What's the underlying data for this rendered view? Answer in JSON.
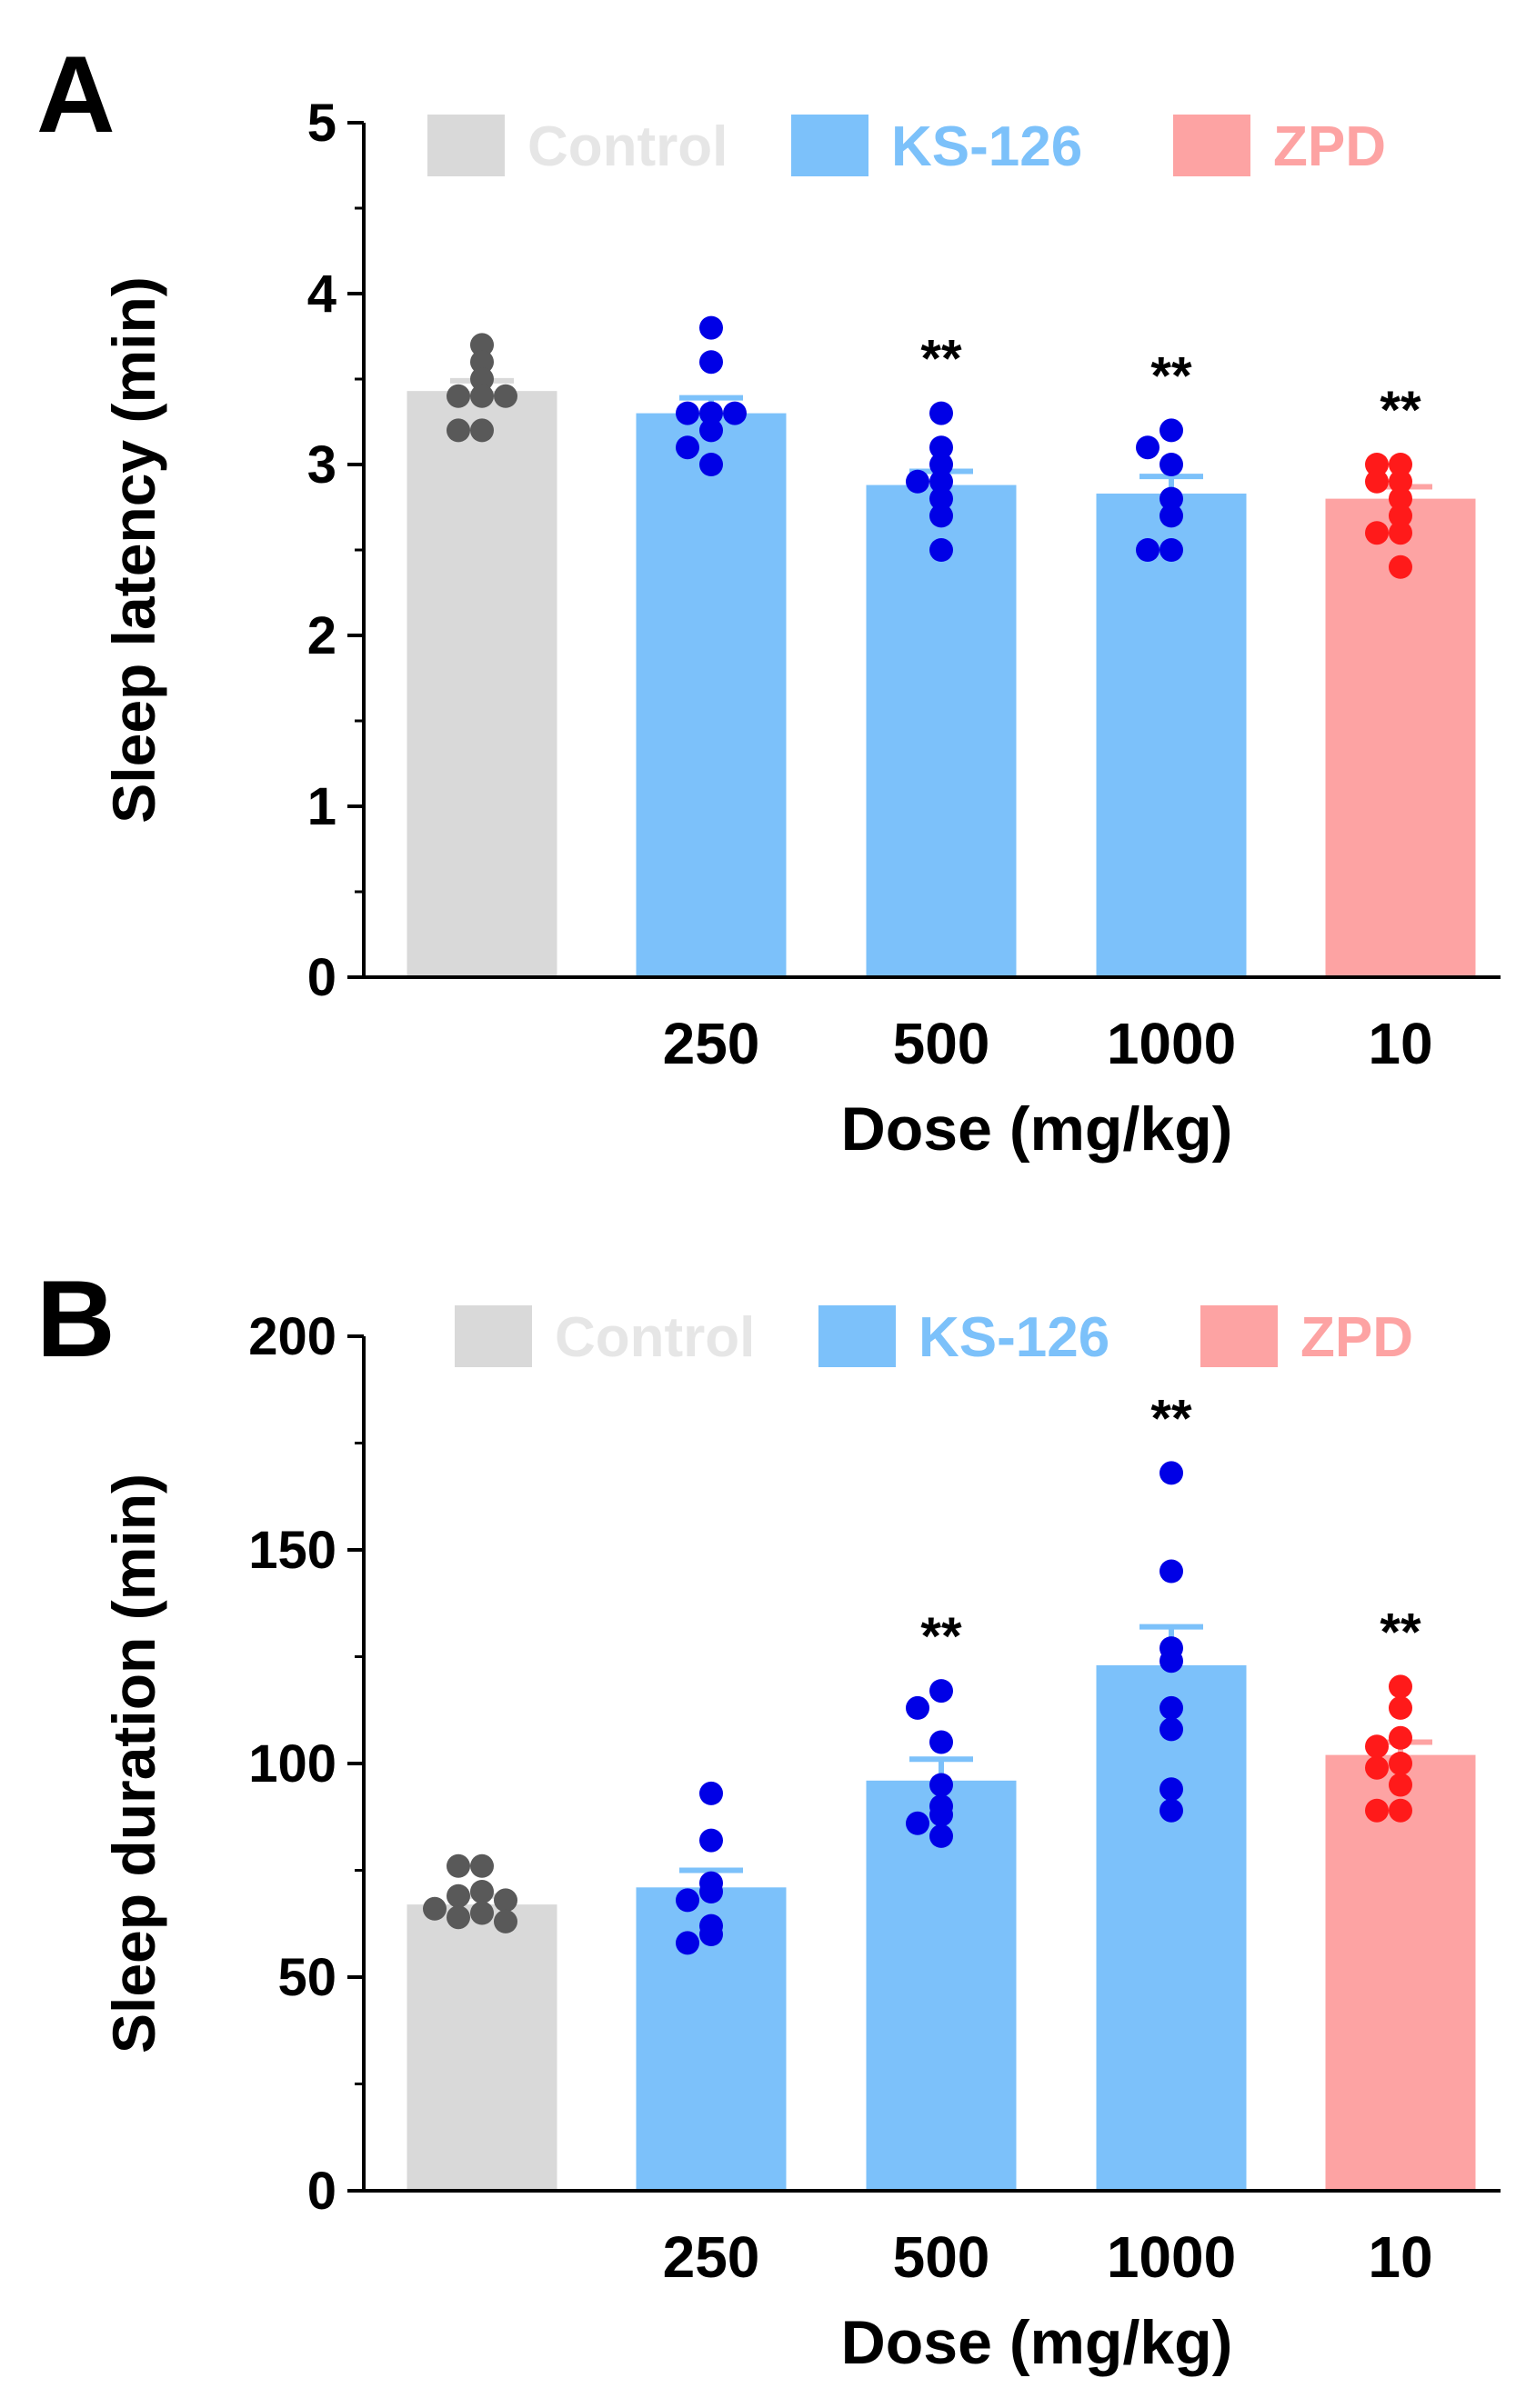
{
  "colors": {
    "control_bar": "#d9d9d9",
    "control_dot": "#595959",
    "ks_bar": "#7cc1fa",
    "ks_dot": "#0000e6",
    "zpd_bar": "#fda3a3",
    "zpd_dot": "#ff1a1a",
    "axis": "#000000",
    "text": "#000000"
  },
  "chart_data": [
    {
      "panel_label": "A",
      "type": "bar",
      "ylabel": "Sleep latency (min)",
      "xlabel": "Dose (mg/kg)",
      "ylim": [
        0,
        5
      ],
      "yticks": [
        0,
        1,
        2,
        3,
        4,
        5
      ],
      "categories": [
        "",
        "250",
        "500",
        "1000",
        "10"
      ],
      "legend": [
        "Control",
        "KS-126",
        "ZPD"
      ],
      "legend_placement": "top",
      "bars": [
        {
          "group": "Control",
          "value": 3.43,
          "sem": 0.06,
          "sig": "",
          "points": [
            3.7,
            3.6,
            3.5,
            3.4,
            3.4,
            3.4,
            3.2,
            3.2
          ]
        },
        {
          "group": "KS-126",
          "value": 3.3,
          "sem": 0.09,
          "sig": "",
          "points": [
            3.8,
            3.6,
            3.3,
            3.3,
            3.3,
            3.2,
            3.1,
            3.0
          ]
        },
        {
          "group": "KS-126",
          "value": 2.88,
          "sem": 0.08,
          "sig": "**",
          "points": [
            3.3,
            3.1,
            3.0,
            2.9,
            2.9,
            2.8,
            2.7,
            2.5
          ]
        },
        {
          "group": "KS-126",
          "value": 2.83,
          "sem": 0.1,
          "sig": "**",
          "points": [
            3.2,
            3.1,
            3.0,
            2.8,
            2.7,
            2.5,
            2.5
          ]
        },
        {
          "group": "ZPD",
          "value": 2.8,
          "sem": 0.07,
          "sig": "**",
          "points": [
            3.0,
            3.0,
            2.9,
            2.9,
            2.8,
            2.7,
            2.6,
            2.6,
            2.4
          ]
        }
      ]
    },
    {
      "panel_label": "B",
      "type": "bar",
      "ylabel": "Sleep duration (min)",
      "xlabel": "Dose (mg/kg)",
      "ylim": [
        0,
        200
      ],
      "yticks": [
        0,
        50,
        100,
        150,
        200
      ],
      "categories": [
        "",
        "250",
        "500",
        "1000",
        "10"
      ],
      "legend": [
        "Control",
        "KS-126",
        "ZPD"
      ],
      "legend_placement": "top",
      "bars": [
        {
          "group": "Control",
          "value": 67,
          "sem": 2,
          "sig": "",
          "points": [
            76,
            76,
            70,
            69,
            68,
            66,
            65,
            64,
            63
          ]
        },
        {
          "group": "KS-126",
          "value": 71,
          "sem": 4,
          "sig": "",
          "points": [
            93,
            82,
            72,
            70,
            68,
            62,
            60,
            58
          ]
        },
        {
          "group": "KS-126",
          "value": 96,
          "sem": 5,
          "sig": "**",
          "points": [
            117,
            113,
            105,
            95,
            90,
            88,
            86,
            83
          ]
        },
        {
          "group": "KS-126",
          "value": 123,
          "sem": 9,
          "sig": "**",
          "points": [
            168,
            145,
            127,
            124,
            113,
            108,
            94,
            89
          ]
        },
        {
          "group": "ZPD",
          "value": 102,
          "sem": 3,
          "sig": "**",
          "points": [
            118,
            113,
            106,
            104,
            100,
            99,
            95,
            89,
            89
          ]
        }
      ]
    }
  ]
}
